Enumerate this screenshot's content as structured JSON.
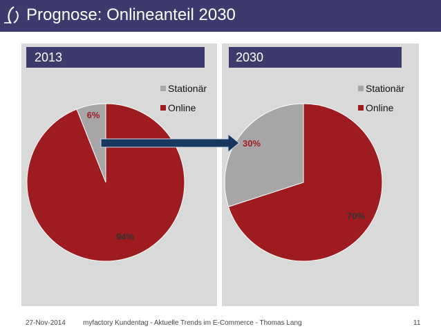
{
  "header": {
    "title": "Prognose: Onlineanteil 2030"
  },
  "colors": {
    "header_bg": "#3d3a6e",
    "panel_bg": "#d9d9d9",
    "stationaer": "#a6a6a6",
    "online": "#9e1b1f",
    "arrow": "#17375e"
  },
  "legend": {
    "items": [
      "Stationär",
      "Online"
    ]
  },
  "chart_data": [
    {
      "type": "pie",
      "title": "2013",
      "categories": [
        "Stationär",
        "Online"
      ],
      "values": [
        94,
        6
      ],
      "data_labels": [
        "94%",
        "6%"
      ],
      "legend_position": "top-right"
    },
    {
      "type": "pie",
      "title": "2030",
      "categories": [
        "Stationär",
        "Online"
      ],
      "values": [
        70,
        30
      ],
      "data_labels": [
        "70%",
        "30%"
      ],
      "legend_position": "top-right"
    }
  ],
  "footer": {
    "date": "27-Nov-2014",
    "text": "myfactory Kundentag - Aktuelle Trends im E-Commerce - Thomas Lang",
    "page": "11"
  }
}
